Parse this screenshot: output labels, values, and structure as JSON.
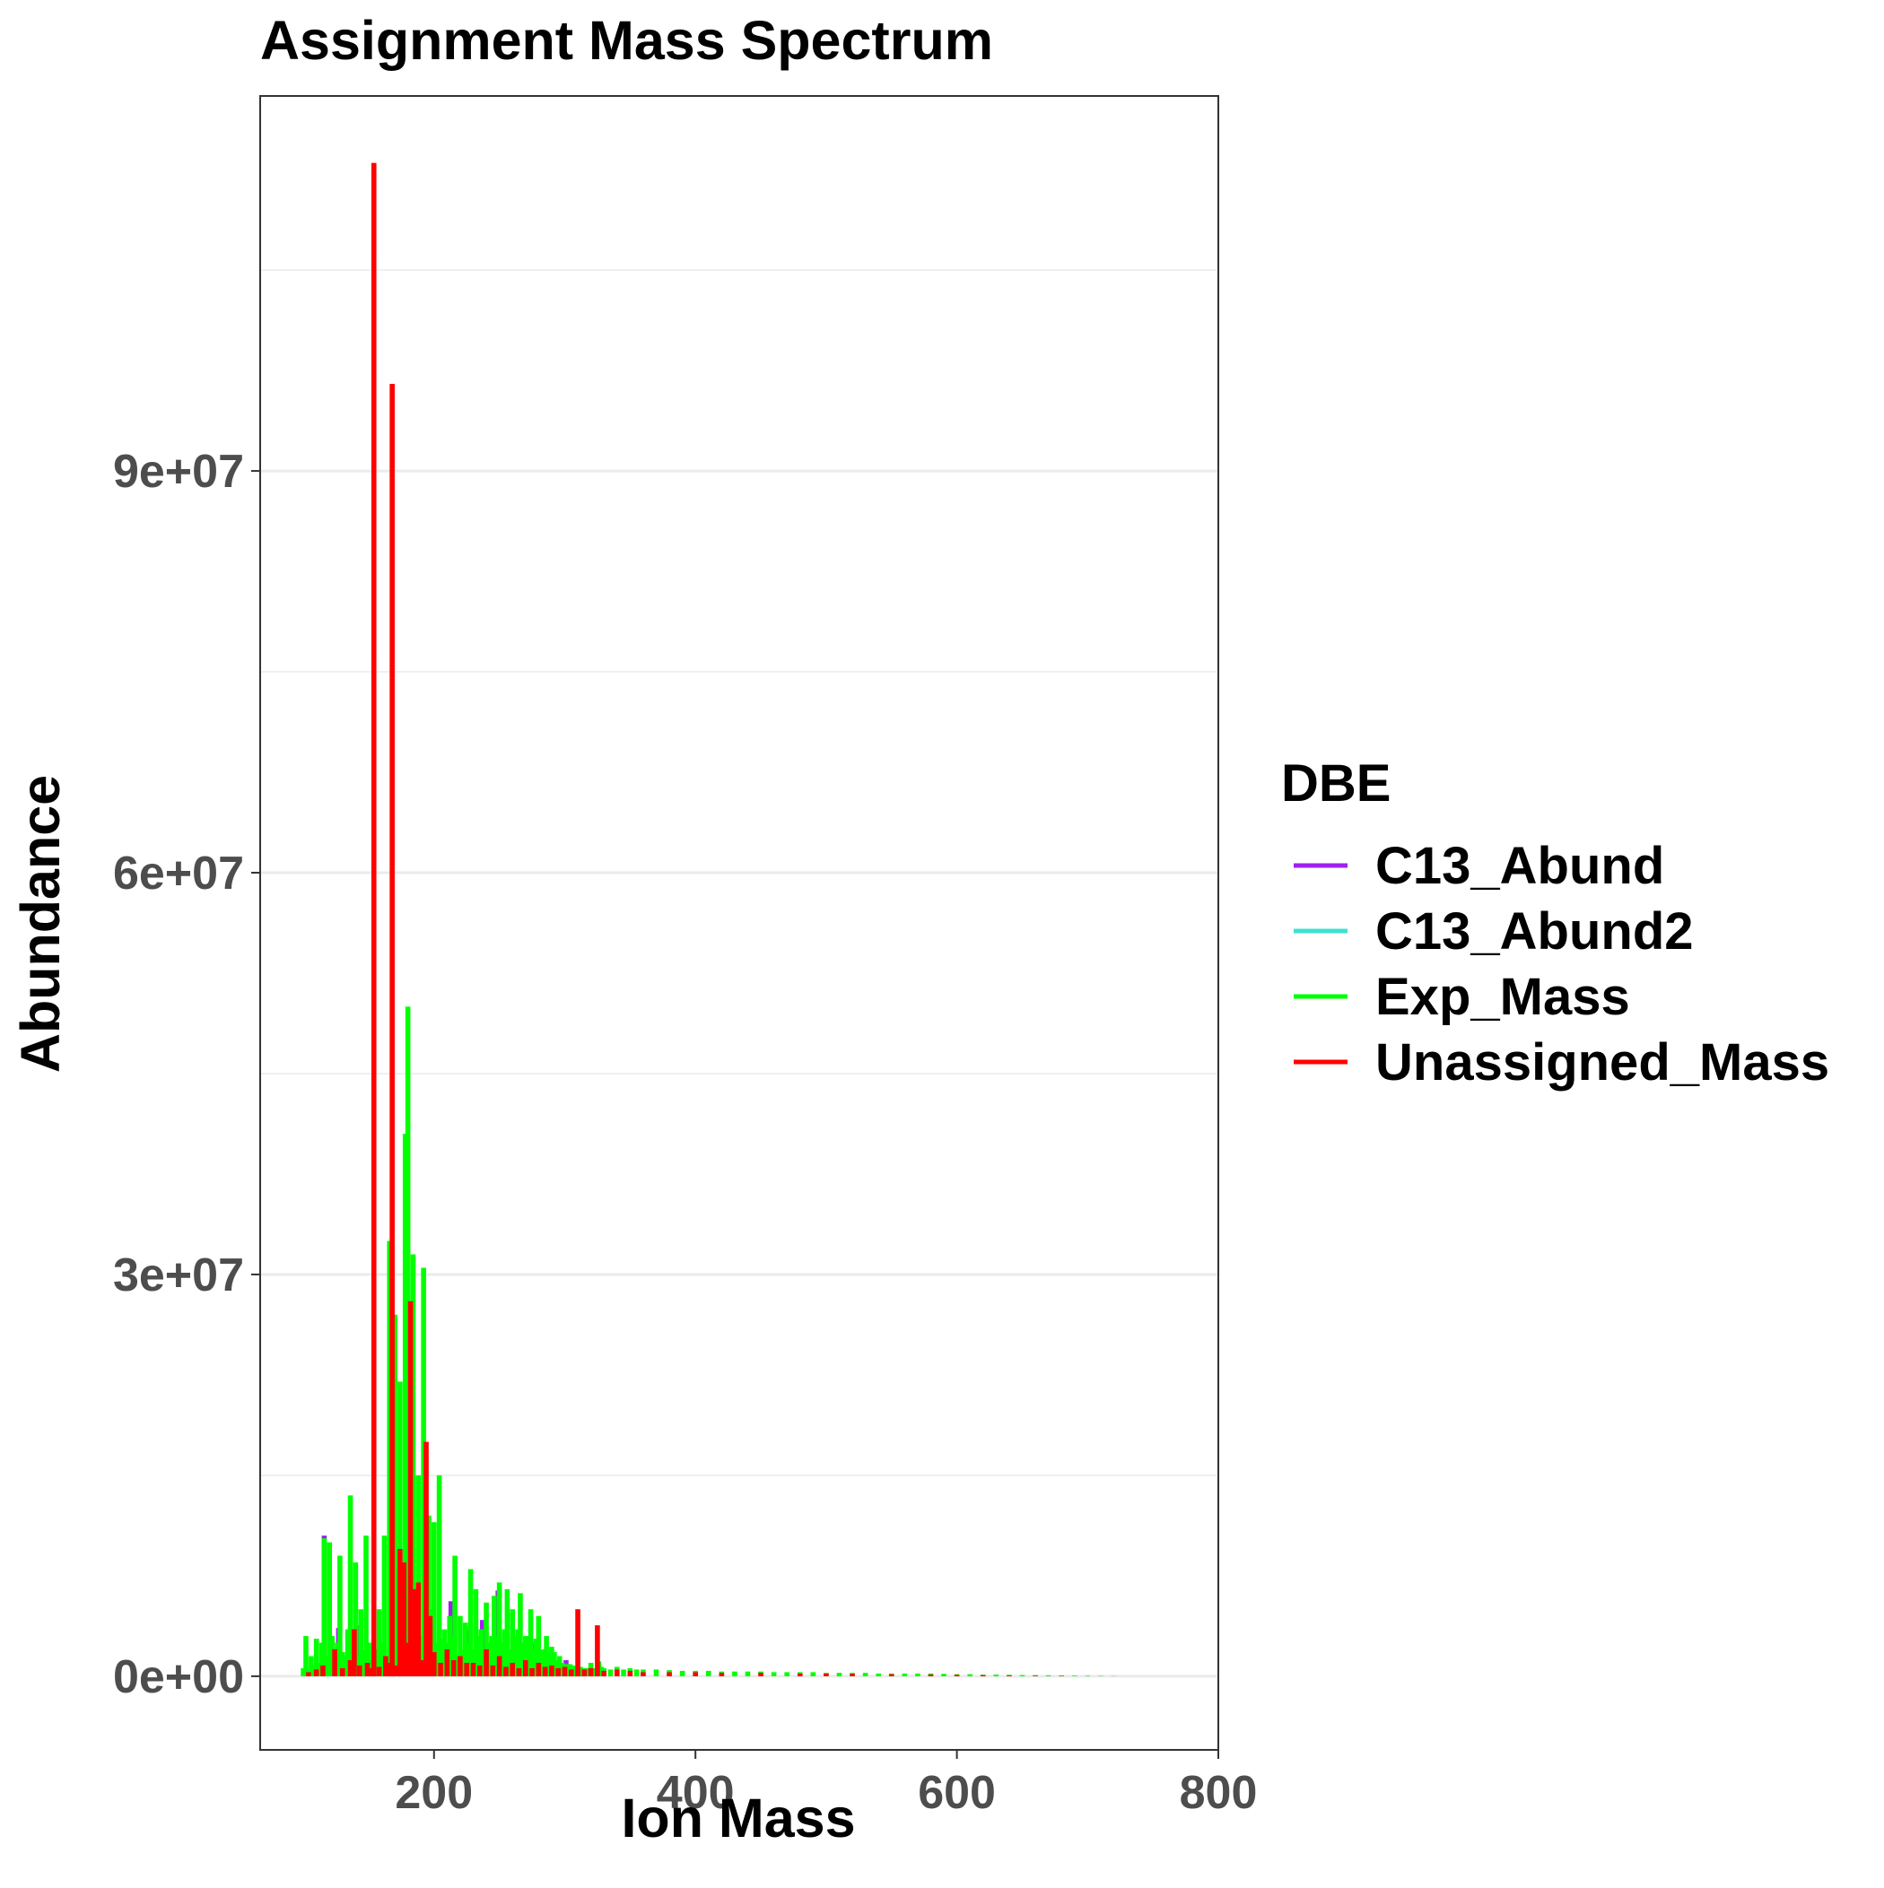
{
  "chart_data": {
    "type": "bar",
    "title": "Assignment Mass Spectrum",
    "xlabel": "Ion Mass",
    "ylabel": "Abundance",
    "xlim": [
      67,
      800
    ],
    "ylim": [
      -5500000,
      118000000
    ],
    "x_ticks": [
      200,
      400,
      600,
      800
    ],
    "x_tick_labels": [
      "200",
      "400",
      "600",
      "800"
    ],
    "y_ticks": [
      0,
      30000000,
      60000000,
      90000000
    ],
    "y_tick_labels": [
      "0e+00",
      "3e+07",
      "6e+07",
      "9e+07"
    ],
    "y_minor_ticks": [
      15000000,
      45000000,
      75000000,
      105000000
    ],
    "grid": true,
    "legend": {
      "title": "DBE",
      "position": "right"
    },
    "series": [
      {
        "name": "C13_Abund",
        "color": "#A020F0",
        "x": [
          116,
          127,
          129,
          141,
          143,
          155,
          157,
          169,
          171,
          183,
          185,
          195,
          197,
          213,
          225,
          237,
          249,
          261,
          275,
          287,
          301,
          313
        ],
        "values": [
          10500000,
          3600000,
          900000,
          3800000,
          1000000,
          1500000,
          800000,
          3000000,
          1200000,
          4000000,
          1400000,
          2500000,
          700000,
          5600000,
          3500000,
          4200000,
          6400000,
          2800000,
          2500000,
          1800000,
          1200000,
          600000
        ]
      },
      {
        "name": "C13_Abund2",
        "color": "#40E0D0",
        "x": [
          118,
          130,
          144,
          158,
          172,
          186,
          200,
          214,
          228,
          242,
          256,
          270,
          284
        ],
        "values": [
          600000,
          400000,
          500000,
          400000,
          700000,
          900000,
          600000,
          1500000,
          800000,
          900000,
          700000,
          600000,
          400000
        ]
      },
      {
        "name": "Exp_Mass",
        "color": "#00FF00",
        "x": [
          100,
          102,
          104,
          106,
          108,
          110,
          112,
          114,
          116,
          118,
          120,
          122,
          124,
          126,
          128,
          130,
          132,
          134,
          136,
          138,
          140,
          142,
          144,
          146,
          148,
          150,
          152,
          154,
          156,
          158,
          160,
          162,
          164,
          166,
          168,
          170,
          172,
          174,
          176,
          178,
          180,
          182,
          184,
          186,
          188,
          190,
          192,
          194,
          196,
          198,
          200,
          202,
          204,
          206,
          208,
          210,
          212,
          214,
          216,
          218,
          220,
          222,
          224,
          226,
          228,
          230,
          232,
          234,
          236,
          238,
          240,
          242,
          244,
          246,
          248,
          250,
          252,
          254,
          256,
          258,
          260,
          262,
          264,
          266,
          268,
          270,
          272,
          274,
          276,
          278,
          280,
          282,
          284,
          286,
          288,
          290,
          292,
          294,
          296,
          298,
          300,
          302,
          304,
          306,
          308,
          310,
          312,
          314,
          316,
          318,
          320,
          322,
          324,
          326,
          328,
          330,
          335,
          340,
          345,
          350,
          355,
          360,
          370,
          380,
          390,
          400,
          410,
          420,
          430,
          440,
          450,
          460,
          470,
          480,
          490,
          500,
          510,
          520,
          530,
          540,
          550,
          560,
          570,
          580,
          590,
          600,
          610,
          620,
          630,
          640,
          650,
          660,
          670,
          680,
          690,
          700,
          710,
          720
        ],
        "values": [
          600000,
          3000000,
          500000,
          1500000,
          800000,
          2800000,
          1000000,
          2500000,
          10300000,
          1500000,
          10000000,
          3000000,
          1200000,
          2500000,
          9000000,
          1800000,
          1500000,
          3500000,
          13500000,
          2000000,
          8500000,
          1500000,
          5000000,
          2000000,
          10500000,
          2500000,
          1200000,
          800000,
          2000000,
          5000000,
          2500000,
          10500000,
          1500000,
          32500000,
          1800000,
          27000000,
          8000000,
          22000000,
          3500000,
          40500000,
          50000000,
          16000000,
          31500000,
          2500000,
          15000000,
          3000000,
          30500000,
          4000000,
          12000000,
          5000000,
          11500000,
          2500000,
          15000000,
          2800000,
          3500000,
          2500000,
          4500000,
          3000000,
          9000000,
          1500000,
          4500000,
          2000000,
          4000000,
          2500000,
          8000000,
          2000000,
          6500000,
          3000000,
          3500000,
          2000000,
          5500000,
          2500000,
          3000000,
          6000000,
          3000000,
          7000000,
          2500000,
          3500000,
          6500000,
          2000000,
          5000000,
          3000000,
          3500000,
          6200000,
          2500000,
          3000000,
          3000000,
          5000000,
          2000000,
          2800000,
          4500000,
          2000000,
          2000000,
          3000000,
          1800000,
          2200000,
          1800000,
          1200000,
          1500000,
          1000000,
          900000,
          900000,
          900000,
          800000,
          700000,
          700000,
          700000,
          600000,
          600000,
          600000,
          1000000,
          600000,
          600000,
          1100000,
          700000,
          600000,
          500000,
          700000,
          500000,
          600000,
          500000,
          500000,
          500000,
          450000,
          400000,
          400000,
          400000,
          350000,
          350000,
          350000,
          350000,
          300000,
          300000,
          300000,
          300000,
          250000,
          250000,
          250000,
          250000,
          200000,
          200000,
          200000,
          200000,
          200000,
          180000,
          150000,
          150000,
          120000,
          120000,
          100000,
          90000,
          80000,
          70000,
          60000,
          50000,
          40000,
          30000,
          20000
        ]
      },
      {
        "name": "Unassigned_Mass",
        "color": "#FF0000",
        "x": [
          104,
          110,
          115,
          124,
          130,
          136,
          139,
          143,
          149,
          152,
          154,
          158,
          163,
          166,
          168,
          171,
          174,
          177,
          180,
          182,
          185,
          188,
          191,
          194,
          197,
          200,
          205,
          210,
          215,
          220,
          225,
          230,
          235,
          240,
          245,
          250,
          255,
          260,
          265,
          270,
          275,
          280,
          285,
          290,
          295,
          300,
          305,
          310,
          315,
          320,
          325,
          330,
          340,
          350,
          360,
          380,
          400,
          420,
          450,
          480,
          500,
          520,
          550,
          580,
          600,
          620,
          640,
          660,
          680
        ],
        "values": [
          300000,
          500000,
          800000,
          2000000,
          600000,
          1200000,
          3500000,
          800000,
          1000000,
          600000,
          113000000,
          700000,
          1500000,
          1000000,
          96500000,
          800000,
          9500000,
          8500000,
          2500000,
          28000000,
          6500000,
          7000000,
          1200000,
          17500000,
          4500000,
          1800000,
          1000000,
          2000000,
          1200000,
          1500000,
          1000000,
          1000000,
          800000,
          2000000,
          800000,
          1500000,
          700000,
          1000000,
          600000,
          1200000,
          600000,
          1000000,
          700000,
          800000,
          600000,
          700000,
          500000,
          5000000,
          500000,
          600000,
          3800000,
          400000,
          500000,
          400000,
          300000,
          300000,
          300000,
          250000,
          250000,
          200000,
          200000,
          180000,
          150000,
          120000,
          100000,
          80000,
          60000,
          40000,
          20000
        ]
      }
    ]
  }
}
